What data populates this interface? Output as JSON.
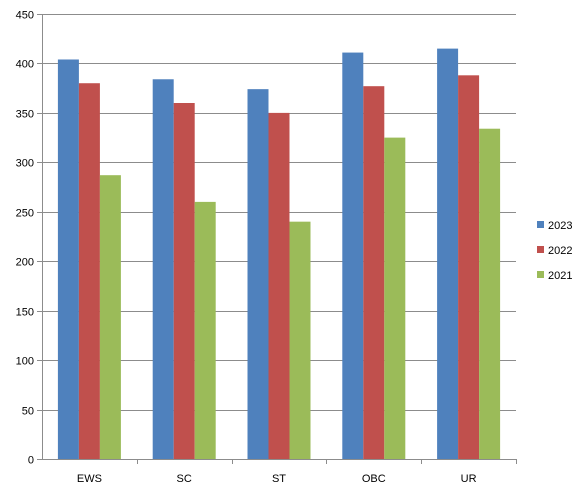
{
  "chart_data": {
    "type": "bar",
    "categories": [
      "EWS",
      "SC",
      "ST",
      "OBC",
      "UR"
    ],
    "series": [
      {
        "name": "2023",
        "color": "#4F81BD",
        "values": [
          404,
          384,
          374,
          411,
          415
        ]
      },
      {
        "name": "2022",
        "color": "#C0504D",
        "values": [
          380,
          360,
          350,
          377,
          388
        ]
      },
      {
        "name": "2021",
        "color": "#9BBB59",
        "values": [
          287,
          260,
          240,
          325,
          334
        ]
      }
    ],
    "ylim": [
      0,
      450
    ],
    "yticks": [
      0,
      50,
      100,
      150,
      200,
      250,
      300,
      350,
      400,
      450
    ],
    "grid": true,
    "legend_position": "right"
  }
}
